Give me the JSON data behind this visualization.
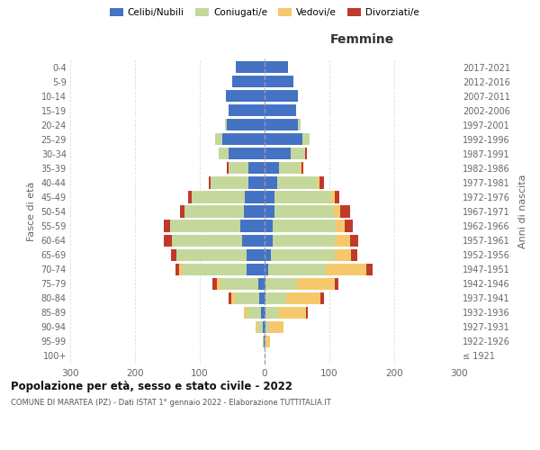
{
  "age_groups": [
    "100+",
    "95-99",
    "90-94",
    "85-89",
    "80-84",
    "75-79",
    "70-74",
    "65-69",
    "60-64",
    "55-59",
    "50-54",
    "45-49",
    "40-44",
    "35-39",
    "30-34",
    "25-29",
    "20-24",
    "15-19",
    "10-14",
    "5-9",
    "0-4"
  ],
  "birth_years": [
    "≤ 1921",
    "1922-1926",
    "1927-1931",
    "1932-1936",
    "1937-1941",
    "1942-1946",
    "1947-1951",
    "1952-1956",
    "1957-1961",
    "1962-1966",
    "1967-1971",
    "1972-1976",
    "1977-1981",
    "1982-1986",
    "1987-1991",
    "1992-1996",
    "1997-2001",
    "2002-2006",
    "2007-2011",
    "2012-2016",
    "2017-2021"
  ],
  "males": {
    "celibe": [
      0,
      1,
      3,
      5,
      8,
      10,
      28,
      28,
      35,
      38,
      32,
      30,
      25,
      25,
      55,
      65,
      58,
      55,
      60,
      50,
      44
    ],
    "coniugato": [
      0,
      2,
      8,
      22,
      38,
      58,
      98,
      108,
      108,
      108,
      92,
      82,
      58,
      30,
      16,
      12,
      3,
      0,
      0,
      0,
      0
    ],
    "vedovo": [
      0,
      0,
      3,
      5,
      6,
      6,
      6,
      0,
      0,
      0,
      0,
      0,
      0,
      0,
      0,
      0,
      0,
      0,
      0,
      0,
      0
    ],
    "divorziato": [
      0,
      0,
      0,
      0,
      3,
      6,
      6,
      9,
      12,
      9,
      6,
      6,
      3,
      3,
      0,
      0,
      0,
      0,
      0,
      0,
      0
    ]
  },
  "females": {
    "nubile": [
      0,
      0,
      2,
      2,
      2,
      2,
      5,
      10,
      12,
      12,
      15,
      15,
      20,
      22,
      40,
      58,
      52,
      48,
      52,
      44,
      36
    ],
    "coniugata": [
      0,
      2,
      5,
      20,
      32,
      48,
      90,
      98,
      98,
      98,
      92,
      88,
      62,
      32,
      22,
      12,
      3,
      0,
      0,
      0,
      0
    ],
    "vedova": [
      0,
      6,
      22,
      42,
      52,
      58,
      62,
      26,
      22,
      14,
      9,
      6,
      3,
      3,
      0,
      0,
      0,
      0,
      0,
      0,
      0
    ],
    "divorziata": [
      0,
      0,
      0,
      3,
      6,
      6,
      9,
      9,
      12,
      12,
      16,
      6,
      6,
      3,
      3,
      0,
      0,
      0,
      0,
      0,
      0
    ]
  },
  "colors": {
    "celibe": "#4472C4",
    "coniugato": "#C5D89C",
    "vedovo": "#F5C96B",
    "divorziato": "#C0392B"
  },
  "xlim": 300,
  "title": "Popolazione per età, sesso e stato civile - 2022",
  "subtitle": "COMUNE DI MARATEA (PZ) - Dati ISTAT 1° gennaio 2022 - Elaborazione TUTTITALIA.IT",
  "ylabel_left": "Fasce di età",
  "ylabel_right": "Anni di nascita",
  "legend_labels": [
    "Celibi/Nubili",
    "Coniugati/e",
    "Vedovi/e",
    "Divorziati/e"
  ],
  "xlabel_femmine": "Femmine",
  "bg_color": "#ffffff",
  "grid_color": "#cccccc"
}
